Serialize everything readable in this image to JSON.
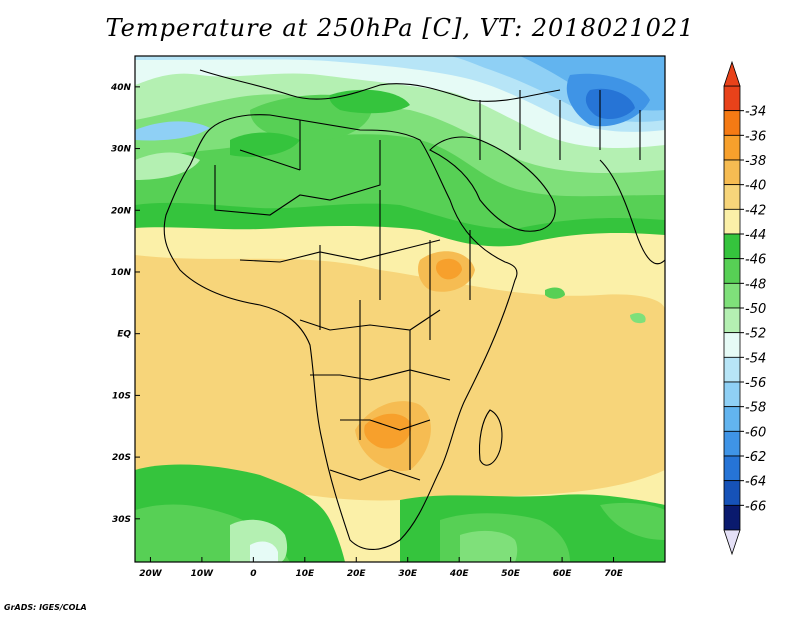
{
  "title": "Temperature at 250hPa [C], VT: 2018021021",
  "footer": "GrADS: IGES/COLA",
  "map": {
    "lon_range": [
      -23,
      80
    ],
    "lat_range": [
      -37,
      45
    ],
    "lon_ticks": [
      "20W",
      "10W",
      "0",
      "10E",
      "20E",
      "30E",
      "40E",
      "50E",
      "60E",
      "70E"
    ],
    "lat_ticks": [
      "40N",
      "30N",
      "20N",
      "10N",
      "EQ",
      "10S",
      "20S",
      "30S"
    ]
  },
  "colorbar": {
    "levels": [
      "-34",
      "-36",
      "-38",
      "-40",
      "-42",
      "-44",
      "-46",
      "-48",
      "-50",
      "-52",
      "-54",
      "-56",
      "-58",
      "-60",
      "-62",
      "-64",
      "-66"
    ],
    "colors": [
      "#e8421a",
      "#f57a14",
      "#f7a02c",
      "#f6bc52",
      "#f7d57a",
      "#fbf0a8",
      "#35c43d",
      "#57d055",
      "#7fe07a",
      "#b4f0b2",
      "#e6fbf6",
      "#b7e5f7",
      "#8fd0f5",
      "#62b4ef",
      "#3f94e6",
      "#2674d6",
      "#1652b8",
      "#0a1a6e"
    ],
    "top_arrow_color": "#e8421a",
    "bottom_arrow_color": "#e4e0f6"
  }
}
